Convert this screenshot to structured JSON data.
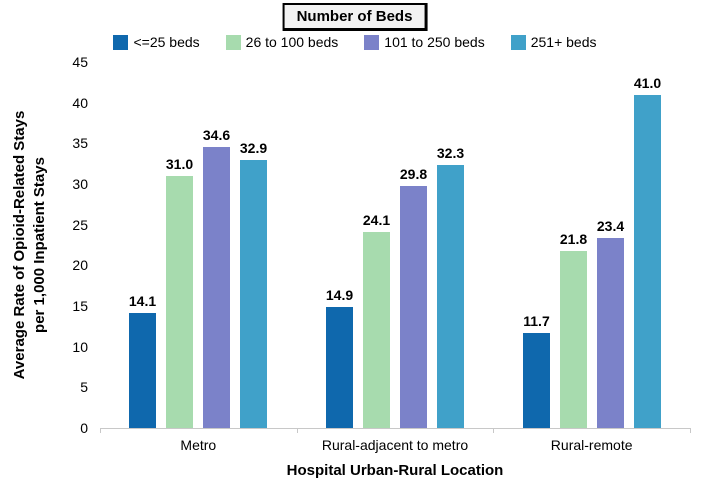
{
  "chart_data": {
    "type": "bar",
    "title": "Number of Beds",
    "categories": [
      "Metro",
      "Rural-adjacent to metro",
      "Rural-remote"
    ],
    "series": [
      {
        "name": "<=25 beds",
        "color": "#0f68ad",
        "values": [
          14.1,
          14.9,
          11.7
        ]
      },
      {
        "name": "26 to 100 beds",
        "color": "#a7dbae",
        "values": [
          31.0,
          24.1,
          21.8
        ]
      },
      {
        "name": "101 to 250 beds",
        "color": "#7b82c9",
        "values": [
          34.6,
          29.8,
          23.4
        ]
      },
      {
        "name": "251+ beds",
        "color": "#40a1c9",
        "values": [
          32.9,
          32.3,
          41.0
        ]
      }
    ],
    "xlabel": "Hospital Urban-Rural Location",
    "ylabel_line1": "Average Rate of Opioid-Related Stays",
    "ylabel_line2": "per 1,000 Inpatient Stays",
    "ylim": [
      0,
      45
    ],
    "ytick_step": 5,
    "grid": false,
    "legend_position": "top",
    "value_label_decimals": 1,
    "axis_color": "#c8c8c8",
    "title_box_bg": "#f2f2f2"
  }
}
